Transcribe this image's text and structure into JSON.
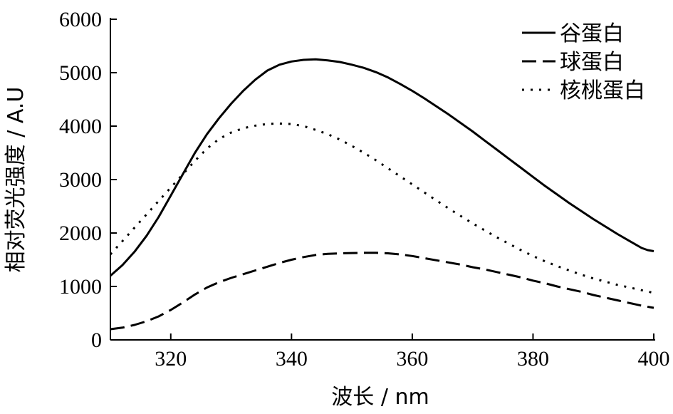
{
  "chart_data": {
    "type": "line",
    "xlabel": "波长 / nm",
    "ylabel": "相对荧光强度 / A.U",
    "xlim": [
      310,
      400
    ],
    "ylim": [
      0,
      6000
    ],
    "xticks": [
      320,
      340,
      360,
      380,
      400
    ],
    "yticks": [
      0,
      1000,
      2000,
      3000,
      4000,
      5000,
      6000
    ],
    "grid": false,
    "legend_position": "top-right",
    "series": [
      {
        "name": "谷蛋白",
        "style": "solid",
        "color": "#000000",
        "x": [
          310,
          312,
          314,
          316,
          318,
          320,
          322,
          324,
          326,
          328,
          330,
          332,
          334,
          336,
          338,
          340,
          342,
          344,
          346,
          348,
          350,
          352,
          354,
          356,
          358,
          360,
          362,
          364,
          366,
          368,
          370,
          372,
          374,
          376,
          378,
          380,
          382,
          384,
          386,
          388,
          390,
          392,
          394,
          396,
          398,
          399,
          400
        ],
        "y": [
          1200,
          1400,
          1650,
          1950,
          2300,
          2700,
          3100,
          3500,
          3850,
          4150,
          4420,
          4660,
          4870,
          5040,
          5150,
          5210,
          5240,
          5250,
          5230,
          5200,
          5150,
          5090,
          5010,
          4910,
          4790,
          4660,
          4520,
          4370,
          4220,
          4060,
          3900,
          3730,
          3560,
          3390,
          3220,
          3050,
          2880,
          2720,
          2560,
          2410,
          2260,
          2120,
          1980,
          1850,
          1720,
          1680,
          1660
        ]
      },
      {
        "name": "球蛋白",
        "style": "dashed",
        "color": "#000000",
        "x": [
          310,
          312,
          314,
          316,
          318,
          320,
          322,
          324,
          326,
          328,
          330,
          332,
          334,
          336,
          338,
          340,
          342,
          344,
          346,
          348,
          350,
          352,
          354,
          356,
          358,
          360,
          362,
          364,
          366,
          368,
          370,
          372,
          374,
          376,
          378,
          380,
          382,
          384,
          386,
          388,
          390,
          392,
          394,
          396,
          398,
          400
        ],
        "y": [
          200,
          230,
          280,
          350,
          440,
          560,
          700,
          850,
          980,
          1080,
          1160,
          1230,
          1300,
          1370,
          1440,
          1500,
          1550,
          1590,
          1610,
          1620,
          1625,
          1630,
          1630,
          1620,
          1600,
          1570,
          1530,
          1490,
          1450,
          1410,
          1360,
          1320,
          1270,
          1220,
          1170,
          1110,
          1060,
          1000,
          950,
          900,
          840,
          790,
          740,
          690,
          640,
          600
        ]
      },
      {
        "name": "核桃蛋白",
        "style": "dotted",
        "color": "#000000",
        "x": [
          310,
          312,
          314,
          316,
          318,
          320,
          322,
          324,
          326,
          328,
          330,
          332,
          334,
          336,
          338,
          340,
          342,
          344,
          346,
          348,
          350,
          352,
          354,
          356,
          358,
          360,
          362,
          364,
          366,
          368,
          370,
          372,
          374,
          376,
          378,
          380,
          382,
          384,
          386,
          388,
          390,
          392,
          394,
          396,
          398,
          400
        ],
        "y": [
          1600,
          1850,
          2100,
          2350,
          2600,
          2850,
          3100,
          3350,
          3580,
          3760,
          3880,
          3960,
          4010,
          4040,
          4050,
          4040,
          4000,
          3930,
          3850,
          3750,
          3630,
          3500,
          3360,
          3210,
          3060,
          2910,
          2760,
          2610,
          2460,
          2320,
          2180,
          2050,
          1920,
          1800,
          1680,
          1570,
          1470,
          1380,
          1300,
          1220,
          1150,
          1090,
          1030,
          980,
          930,
          880
        ]
      }
    ]
  }
}
